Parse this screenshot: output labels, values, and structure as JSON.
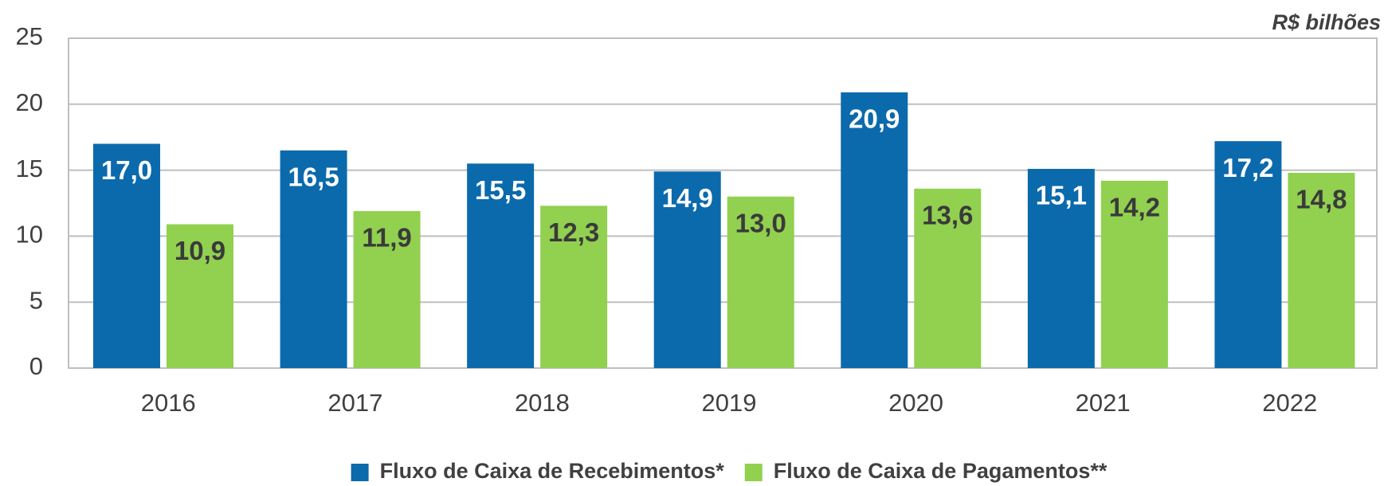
{
  "chart_data": {
    "type": "bar",
    "unit_label": "R$ bilhões",
    "categories": [
      "2016",
      "2017",
      "2018",
      "2019",
      "2020",
      "2021",
      "2022"
    ],
    "series": [
      {
        "name": "Fluxo de Caixa de Recebimentos*",
        "color": "#0b6aac",
        "label_color": "#ffffff",
        "values": [
          17.0,
          16.5,
          15.5,
          14.9,
          20.9,
          15.1,
          17.2
        ],
        "value_labels": [
          "17,0",
          "16,5",
          "15,5",
          "14,9",
          "20,9",
          "15,1",
          "17,2"
        ]
      },
      {
        "name": "Fluxo de Caixa de Pagamentos**",
        "color": "#92d050",
        "label_color": "#3a3a3a",
        "values": [
          10.9,
          11.9,
          12.3,
          13.0,
          13.6,
          14.2,
          14.8
        ],
        "value_labels": [
          "10,9",
          "11,9",
          "12,3",
          "13,0",
          "13,6",
          "14,2",
          "14,8"
        ]
      }
    ],
    "ylim": [
      0,
      25
    ],
    "yticks": [
      0,
      5,
      10,
      15,
      20,
      25
    ],
    "grid": true,
    "legend": "bottom"
  }
}
